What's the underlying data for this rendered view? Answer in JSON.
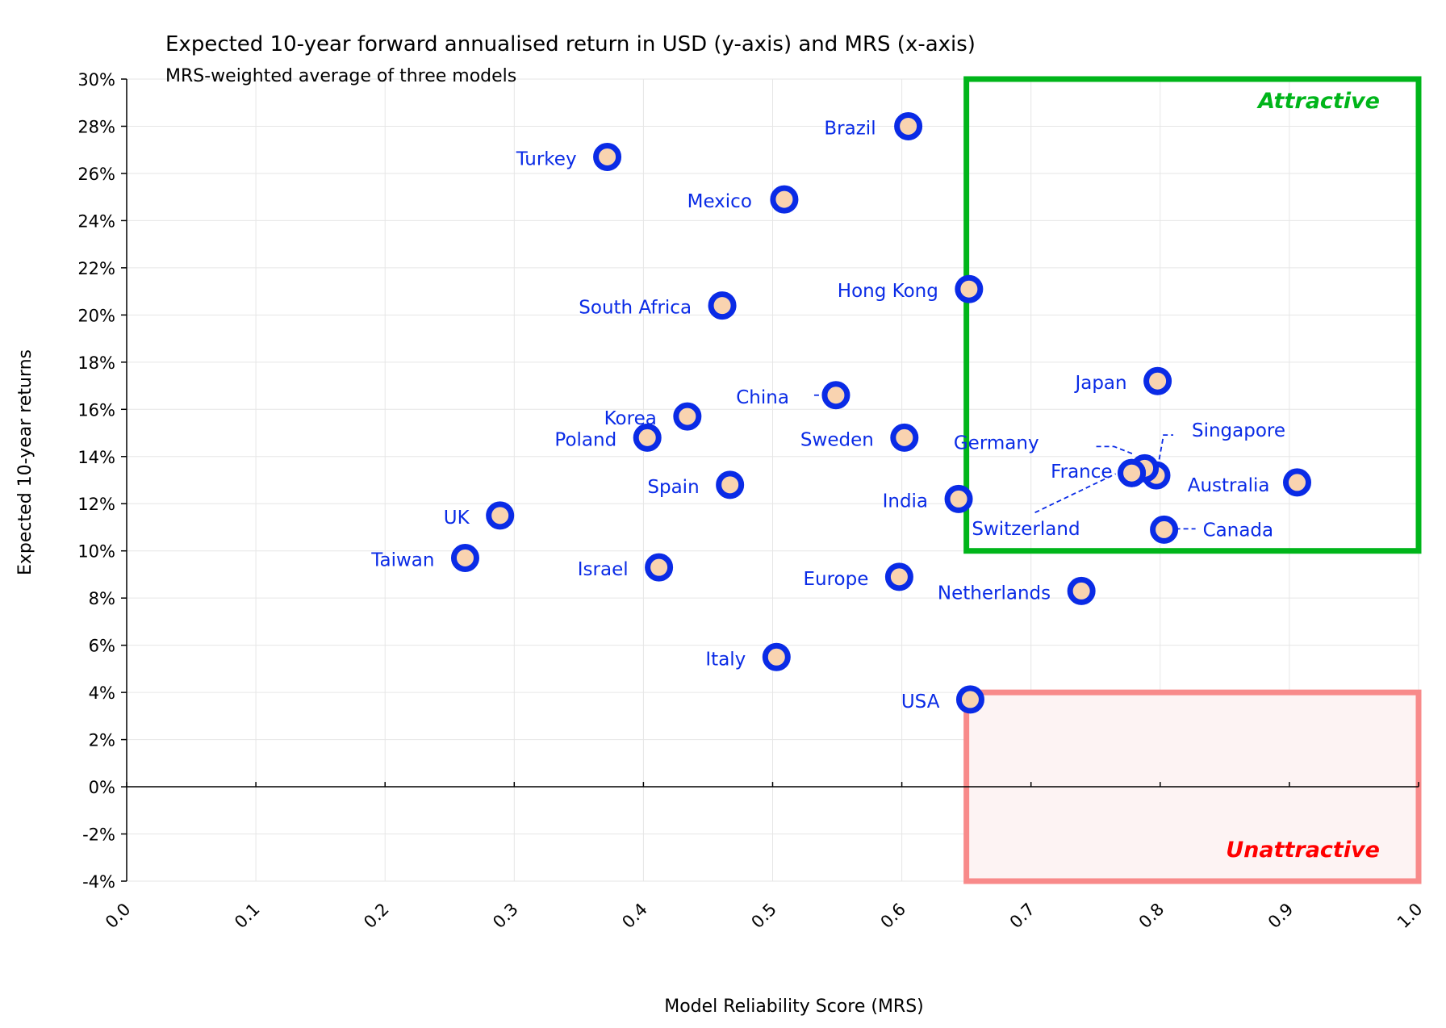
{
  "chart_data": {
    "type": "scatter",
    "title": "Expected 10-year forward annualised return in USD (y-axis) and MRS (x-axis)",
    "subtitle": "MRS-weighted average of three models",
    "xlabel": "Model Reliability Score (MRS)",
    "ylabel": "Expected 10-year returns",
    "xlim": [
      0.0,
      1.0
    ],
    "ylim": [
      -4,
      30
    ],
    "x_ticks": [
      "0.0",
      "0.1",
      "0.2",
      "0.3",
      "0.4",
      "0.5",
      "0.6",
      "0.7",
      "0.8",
      "0.9",
      "1.0"
    ],
    "y_ticks": [
      "-4%",
      "-2%",
      "0%",
      "2%",
      "4%",
      "6%",
      "8%",
      "10%",
      "12%",
      "14%",
      "16%",
      "18%",
      "20%",
      "22%",
      "24%",
      "26%",
      "28%",
      "30%"
    ],
    "grid": true,
    "marker_color": "#0a2be6",
    "marker_fill": "#f9d3b0",
    "label_color": "#0a2be6",
    "points": [
      {
        "name": "Brazil",
        "x": 0.605,
        "y": 28.0
      },
      {
        "name": "Turkey",
        "x": 0.372,
        "y": 26.7
      },
      {
        "name": "Mexico",
        "x": 0.509,
        "y": 24.9
      },
      {
        "name": "Hong Kong",
        "x": 0.652,
        "y": 21.1
      },
      {
        "name": "South Africa",
        "x": 0.461,
        "y": 20.4
      },
      {
        "name": "Japan",
        "x": 0.798,
        "y": 17.2
      },
      {
        "name": "China",
        "x": 0.549,
        "y": 16.6
      },
      {
        "name": "Korea",
        "x": 0.434,
        "y": 15.7
      },
      {
        "name": "Poland",
        "x": 0.403,
        "y": 14.8
      },
      {
        "name": "Sweden",
        "x": 0.602,
        "y": 14.8
      },
      {
        "name": "Singapore",
        "x": 0.797,
        "y": 13.2
      },
      {
        "name": "Germany",
        "x": 0.788,
        "y": 13.5
      },
      {
        "name": "France",
        "x": 0.778,
        "y": 13.3
      },
      {
        "name": "Australia",
        "x": 0.906,
        "y": 12.9
      },
      {
        "name": "Spain",
        "x": 0.467,
        "y": 12.8
      },
      {
        "name": "India",
        "x": 0.644,
        "y": 12.2
      },
      {
        "name": "UK",
        "x": 0.289,
        "y": 11.5
      },
      {
        "name": "Switzerland",
        "x": 0.778,
        "y": 13.3
      },
      {
        "name": "Canada",
        "x": 0.803,
        "y": 10.9
      },
      {
        "name": "Taiwan",
        "x": 0.262,
        "y": 9.7
      },
      {
        "name": "Israel",
        "x": 0.412,
        "y": 9.3
      },
      {
        "name": "Europe",
        "x": 0.598,
        "y": 8.9
      },
      {
        "name": "Netherlands",
        "x": 0.739,
        "y": 8.3
      },
      {
        "name": "Italy",
        "x": 0.503,
        "y": 5.5
      },
      {
        "name": "USA",
        "x": 0.653,
        "y": 3.7
      }
    ],
    "zones": [
      {
        "label": "Attractive",
        "x": [
          0.65,
          1.0
        ],
        "y": [
          10,
          30
        ],
        "color": "#00b51a"
      },
      {
        "label": "Unattractive",
        "x": [
          0.65,
          1.0
        ],
        "y": [
          -4,
          4
        ],
        "color": "#f88a8a",
        "fill": "#fdf3f3",
        "label_color": "#ff0000"
      }
    ]
  }
}
